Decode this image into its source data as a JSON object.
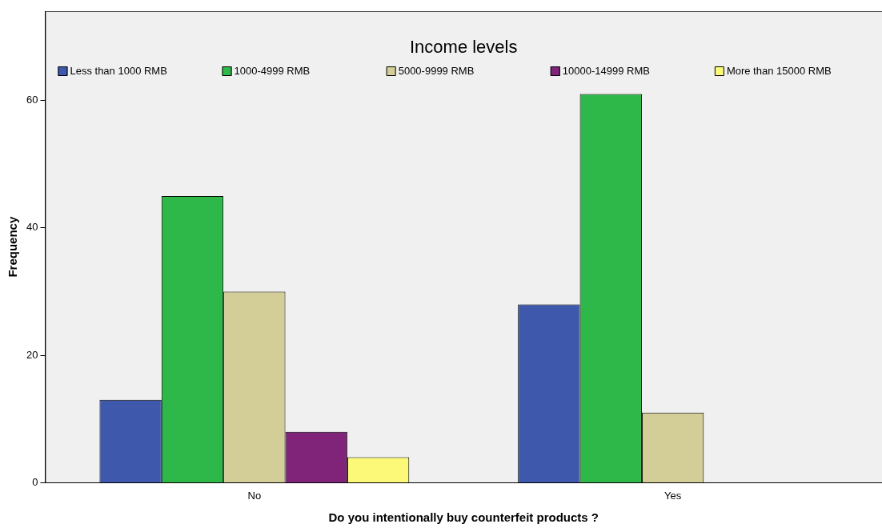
{
  "chart_data": {
    "type": "bar",
    "xlabel": "Do you intentionally buy counterfeit products ?",
    "ylabel": "Frequency",
    "legend_title": "Income levels",
    "categories": [
      "No",
      "Yes"
    ],
    "series": [
      {
        "name": "Less than 1000 RMB",
        "color": "#3e58ac",
        "values": [
          13,
          28
        ]
      },
      {
        "name": "1000-4999 RMB",
        "color": "#2fb84a",
        "values": [
          45,
          61
        ]
      },
      {
        "name": "5000-9999 RMB",
        "color": "#d3ce98",
        "values": [
          30,
          11
        ]
      },
      {
        "name": "10000-14999 RMB",
        "color": "#7f2479",
        "values": [
          8,
          0
        ]
      },
      {
        "name": "More than 15000 RMB",
        "color": "#fbf977",
        "values": [
          4,
          0
        ]
      }
    ],
    "ylim": [
      0,
      74
    ],
    "yticks": [
      0,
      20,
      40,
      60
    ],
    "grid": false,
    "legend": "top"
  }
}
